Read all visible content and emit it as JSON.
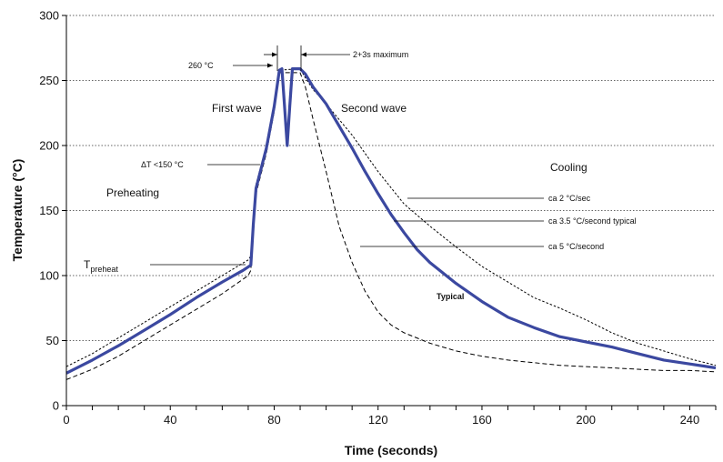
{
  "chart_data": {
    "type": "line",
    "xlabel": "Time (seconds)",
    "ylabel": "Temperature (°C)",
    "xlim": [
      0,
      250
    ],
    "ylim": [
      0,
      300
    ],
    "x_ticks": [
      0,
      40,
      80,
      120,
      160,
      200,
      240
    ],
    "y_ticks": [
      0,
      50,
      100,
      150,
      200,
      250,
      300
    ],
    "grid": "horizontal dotted",
    "colors": {
      "typical": "#3b48a0",
      "limits": "#000000"
    },
    "series": [
      {
        "name": "Typical",
        "style": "solid thick",
        "points": [
          [
            0,
            25
          ],
          [
            10,
            35
          ],
          [
            20,
            46
          ],
          [
            30,
            58
          ],
          [
            40,
            70
          ],
          [
            50,
            83
          ],
          [
            60,
            95
          ],
          [
            68,
            104
          ],
          [
            71,
            108
          ],
          [
            72,
            140
          ],
          [
            73,
            167
          ],
          [
            77,
            198
          ],
          [
            80,
            230
          ],
          [
            82,
            258
          ],
          [
            83,
            259
          ],
          [
            84,
            230
          ],
          [
            85,
            200
          ],
          [
            86,
            230
          ],
          [
            87,
            259
          ],
          [
            90,
            259
          ],
          [
            92,
            255
          ],
          [
            95,
            245
          ],
          [
            100,
            232
          ],
          [
            105,
            215
          ],
          [
            110,
            198
          ],
          [
            115,
            180
          ],
          [
            120,
            163
          ],
          [
            125,
            147
          ],
          [
            130,
            133
          ],
          [
            135,
            120
          ],
          [
            140,
            110
          ],
          [
            150,
            94
          ],
          [
            160,
            80
          ],
          [
            170,
            68
          ],
          [
            180,
            60
          ],
          [
            190,
            53
          ],
          [
            200,
            49
          ],
          [
            210,
            45
          ],
          [
            220,
            40
          ],
          [
            230,
            35
          ],
          [
            240,
            32
          ],
          [
            250,
            29
          ]
        ]
      },
      {
        "style": "dashed upper",
        "points": [
          [
            0,
            30
          ],
          [
            10,
            40
          ],
          [
            20,
            52
          ],
          [
            30,
            64
          ],
          [
            40,
            76
          ],
          [
            50,
            88
          ],
          [
            60,
            100
          ],
          [
            70,
            112
          ],
          [
            71,
            115
          ],
          [
            72,
            145
          ],
          [
            73,
            170
          ],
          [
            77,
            200
          ],
          [
            80,
            232
          ],
          [
            82,
            258
          ],
          [
            90,
            259
          ],
          [
            92,
            252
          ],
          [
            95,
            243
          ],
          [
            100,
            232
          ],
          [
            110,
            208
          ],
          [
            120,
            180
          ],
          [
            130,
            155
          ],
          [
            140,
            138
          ],
          [
            150,
            122
          ],
          [
            160,
            107
          ],
          [
            170,
            95
          ],
          [
            180,
            83
          ],
          [
            190,
            75
          ],
          [
            200,
            66
          ],
          [
            210,
            56
          ],
          [
            220,
            48
          ],
          [
            230,
            42
          ],
          [
            240,
            36
          ],
          [
            250,
            31
          ]
        ]
      },
      {
        "style": "dashed lower",
        "points": [
          [
            0,
            20
          ],
          [
            10,
            28
          ],
          [
            20,
            38
          ],
          [
            30,
            50
          ],
          [
            40,
            62
          ],
          [
            50,
            74
          ],
          [
            60,
            86
          ],
          [
            70,
            100
          ],
          [
            71,
            104
          ],
          [
            72,
            135
          ],
          [
            73,
            163
          ],
          [
            77,
            194
          ],
          [
            80,
            226
          ],
          [
            82,
            256
          ],
          [
            90,
            256
          ],
          [
            92,
            245
          ],
          [
            95,
            220
          ],
          [
            100,
            180
          ],
          [
            105,
            138
          ],
          [
            110,
            110
          ],
          [
            115,
            88
          ],
          [
            120,
            72
          ],
          [
            125,
            62
          ],
          [
            130,
            56
          ],
          [
            140,
            48
          ],
          [
            150,
            42
          ],
          [
            160,
            38
          ],
          [
            170,
            35
          ],
          [
            180,
            33
          ],
          [
            190,
            31
          ],
          [
            200,
            30
          ],
          [
            210,
            29
          ],
          [
            220,
            28
          ],
          [
            230,
            27
          ],
          [
            240,
            27
          ],
          [
            250,
            26
          ]
        ]
      }
    ],
    "annotations": {
      "peak": "260 °C",
      "dwell": "2+3s maximum",
      "first_wave": "First wave",
      "second_wave": "Second wave",
      "delta_t": "ΔT <150  °C",
      "preheating": "Preheating",
      "t_main": "T",
      "t_sub": "preheat",
      "cooling": "Cooling",
      "rate_upper": "ca 2 °C/sec",
      "rate_typical": "ca 3.5 °C/second typical",
      "rate_lower": "ca 5 °C/second",
      "typical": "Typical"
    }
  }
}
